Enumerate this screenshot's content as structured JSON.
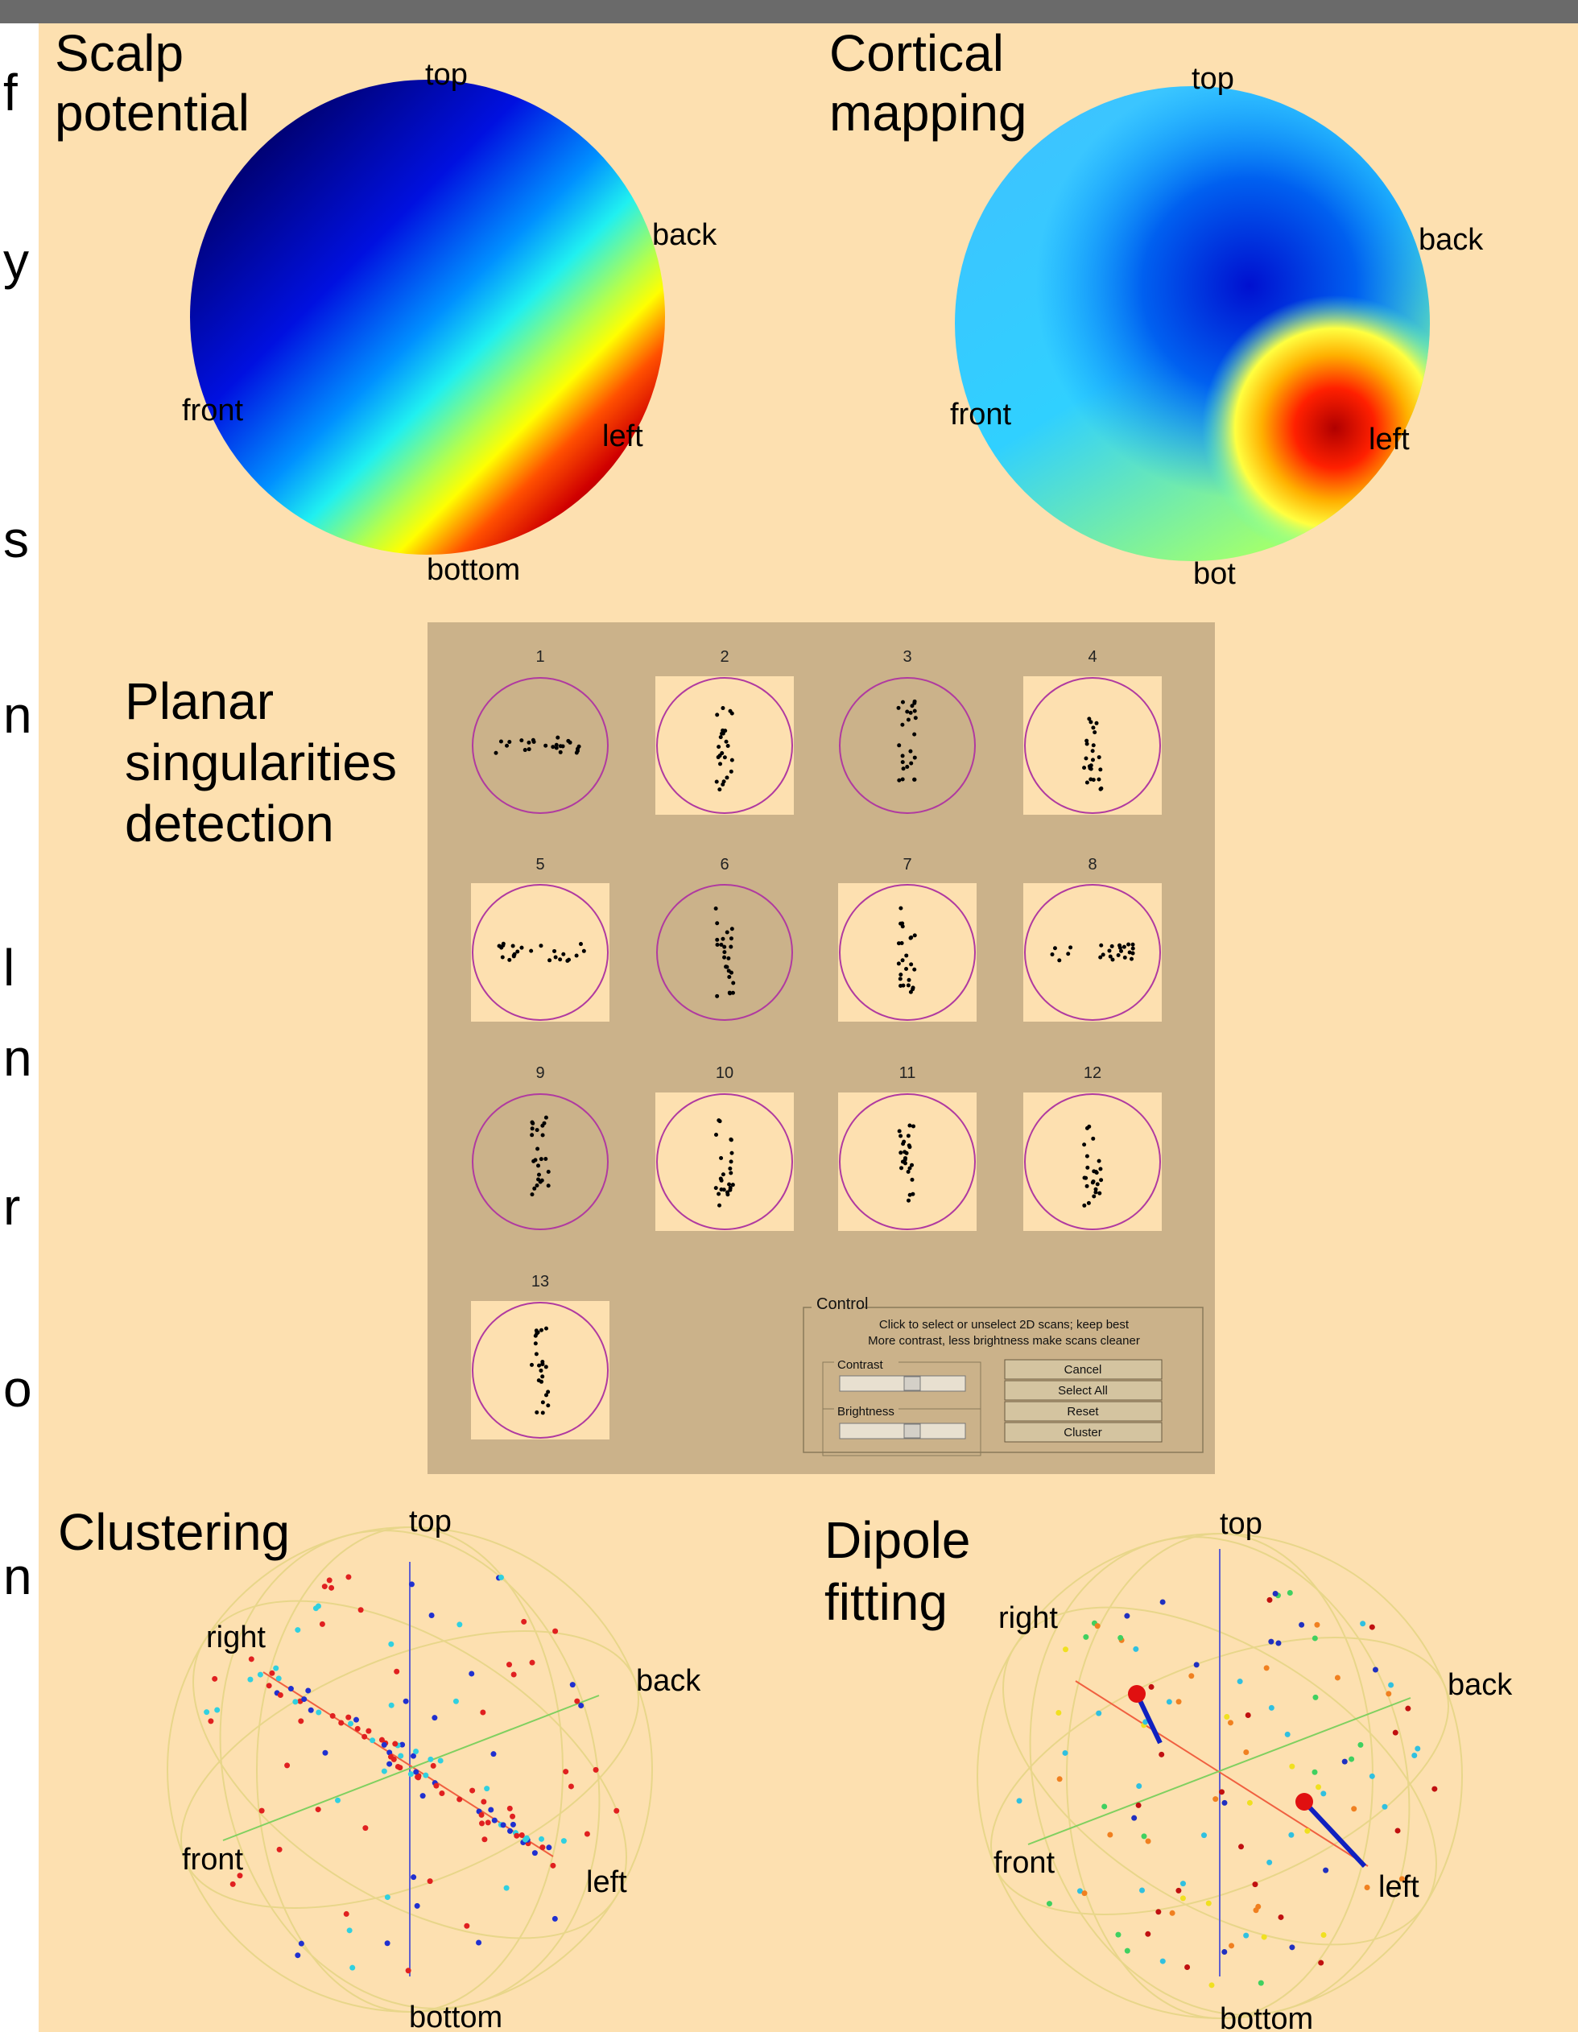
{
  "margin_fragments": [
    "f",
    "y",
    "s",
    "n",
    "l",
    "n",
    "r",
    "o",
    "n"
  ],
  "scalp_potential": {
    "title_lines": [
      "Scalp",
      "potential"
    ],
    "labels": [
      "top",
      "back",
      "front",
      "left",
      "bottom"
    ]
  },
  "cortical_mapping": {
    "title_lines": [
      "Cortical",
      "mapping"
    ],
    "labels": [
      "top",
      "back",
      "front",
      "left",
      "bot"
    ]
  },
  "planar_singularities": {
    "title_lines": [
      "Planar",
      "singularities",
      "detection"
    ],
    "scans": [
      {
        "label": "1",
        "selected": false
      },
      {
        "label": "2",
        "selected": true
      },
      {
        "label": "3",
        "selected": false
      },
      {
        "label": "4",
        "selected": true
      },
      {
        "label": "5",
        "selected": true
      },
      {
        "label": "6",
        "selected": false
      },
      {
        "label": "7",
        "selected": true
      },
      {
        "label": "8",
        "selected": true
      },
      {
        "label": "9",
        "selected": false
      },
      {
        "label": "10",
        "selected": true
      },
      {
        "label": "11",
        "selected": true
      },
      {
        "label": "12",
        "selected": true
      },
      {
        "label": "13",
        "selected": true
      }
    ],
    "control": {
      "title": "Control",
      "instructions": [
        "Click to select or unselect 2D scans; keep best",
        "More contrast, less brightness make scans cleaner"
      ],
      "contrast": "Contrast",
      "brightness": "Brightness",
      "buttons": [
        "Cancel",
        "Select All",
        "Reset",
        "Cluster"
      ]
    }
  },
  "clustering": {
    "title_lines": [
      "Clustering"
    ],
    "labels": [
      "top",
      "right",
      "back",
      "front",
      "left",
      "bottom"
    ]
  },
  "dipole_fitting": {
    "title_lines": [
      "Dipole",
      "fitting"
    ],
    "labels": [
      "top",
      "right",
      "back",
      "front",
      "left",
      "bottom"
    ]
  }
}
